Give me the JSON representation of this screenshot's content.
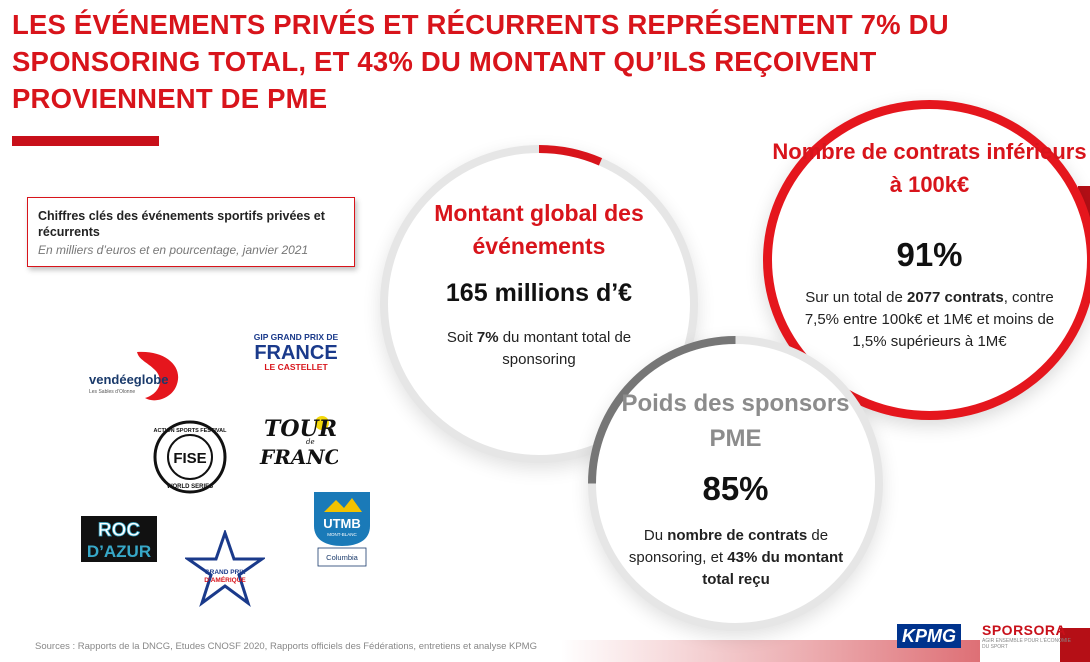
{
  "title": "LES ÉVÉNEMENTS PRIVÉS ET RÉCURRENTS REPRÉSENTENT 7% DU SPONSORING TOTAL, ET 43% DU MONTANT QU’ILS REÇOIVENT PROVIENNENT DE PME",
  "keybox": {
    "title": "Chiffres clés des événements sportifs privées et récurrents",
    "subtitle": "En milliers d’euros et en pourcentage, janvier 2021"
  },
  "circle_montant": {
    "heading": "Montant global des événements",
    "value": "165 millions d’€",
    "text_pre": "Soit ",
    "text_bold": "7%",
    "text_post": " du montant total de sponsoring"
  },
  "circle_contrats": {
    "heading": "Nombre de contrats inférieurs à 100k€",
    "value": "91%",
    "text_pre": "Sur un total de ",
    "text_bold": "2077 contrats",
    "text_post": ", contre 7,5% entre 100k€ et 1M€ et moins de 1,5% supérieurs à 1M€"
  },
  "circle_pme": {
    "heading": "Poids des sponsors PME",
    "value": "85%",
    "text_pre": "Du ",
    "text_bold1": "nombre de contrats",
    "text_mid": " de sponsoring, et ",
    "text_bold2": "43% du montant total reçu"
  },
  "logos": {
    "vendee": {
      "name": "vendéeglobe",
      "sub": "Les Sables d’Olonne"
    },
    "gpfrance": {
      "line1": "GIP GRAND PRIX DE",
      "line2": "FRANCE",
      "line3": "LE CASTELLET"
    },
    "fise": {
      "ring_top": "ACTION SPORTS FESTIVAL",
      "center": "FISE",
      "ring_bottom": "WORLD SERIES"
    },
    "tour": {
      "line1": "TOUR",
      "small": "de",
      "line2": "FRANCE"
    },
    "roc": {
      "line1": "ROC",
      "line2": "D’AZUR"
    },
    "gpamerique": {
      "line1": "GRAND PRIX",
      "line2": "D’AMÉRIQUE"
    },
    "utmb": {
      "name": "UTMB",
      "sub": "MONT-BLANC",
      "partner": "Columbia"
    }
  },
  "footer": {
    "sources": "Sources : Rapports de la DNCG, Etudes CNOSF 2020, Rapports officiels des Fédérations, entretiens et analyse KPMG",
    "kpmg": "KPMG",
    "sporsora": "SPORSORA",
    "sporsora_tag": "AGIR ENSEMBLE POUR L’ÉCONOMIE DU SPORT"
  },
  "colors": {
    "accent": "#d8141b",
    "dark_red": "#b50f16",
    "grey": "#8c8c8c",
    "kpmg_blue": "#00338d"
  }
}
